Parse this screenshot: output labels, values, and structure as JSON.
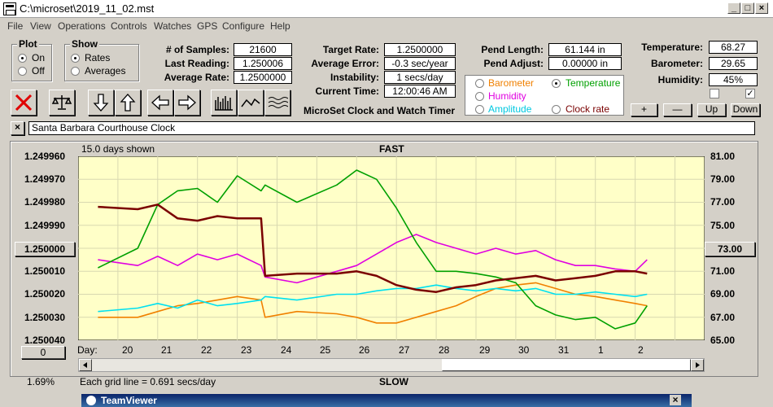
{
  "window": {
    "title": "C:\\microset\\2019_11_02.mst",
    "btn_min": "_",
    "btn_max": "□",
    "btn_close": "×"
  },
  "menu": [
    "File",
    "View",
    "Operations",
    "Controls",
    "Watches",
    "GPS",
    "Configure",
    "Help"
  ],
  "plot_group": {
    "title": "Plot",
    "on": "On",
    "off": "Off"
  },
  "show_group": {
    "title": "Show",
    "rates": "Rates",
    "averages": "Averages"
  },
  "stats": {
    "samples_label": "# of Samples:",
    "samples": "21600",
    "last_label": "Last Reading:",
    "last": "1.250006",
    "avg_label": "Average Rate:",
    "avg": "1.2500000",
    "target_label": "Target Rate:",
    "target": "1.2500000",
    "avgerr_label": "Average Error:",
    "avgerr": "-0.3 sec/year",
    "instab_label": "Instability:",
    "instab": "1 secs/day",
    "time_label": "Current Time:",
    "time": "12:00:46 AM",
    "pendlen_label": "Pend Length:",
    "pendlen": "61.144 in",
    "pendadj_label": "Pend Adjust:",
    "pendadj": "0.00000 in",
    "temp_label": "Temperature:",
    "temp": "68.27",
    "baro_label": "Barometer:",
    "baro": "29.65",
    "hum_label": "Humidity:",
    "hum": "45%"
  },
  "app_title": "MicroSet Clock and Watch Timer",
  "sensors": {
    "barometer": "Barometer",
    "temperature": "Temperature",
    "humidity": "Humidity",
    "amplitude": "Amplitude",
    "clockrate": "Clock rate"
  },
  "scale_buttons": {
    "plus": "+",
    "minus": "—",
    "up": "Up",
    "down": "Down"
  },
  "clock_name": "Santa Barbara Courthouse Clock",
  "close_x": "×",
  "colors": {
    "rate": "#7a0000",
    "temperature": "#00a000",
    "humidity": "#e000e0",
    "amplitude": "#00e0f0",
    "barometer": "#f08000",
    "plot_bg": "#ffffc8"
  },
  "chart_data": {
    "type": "line",
    "title": "FAST",
    "bottom_label": "SLOW",
    "days_shown": "15.0 days shown",
    "grid_note": "Each grid line = 0.691 secs/day",
    "xlabel": "Day:",
    "x_ticks": [
      "20",
      "21",
      "22",
      "23",
      "24",
      "25",
      "26",
      "27",
      "28",
      "29",
      "30",
      "31",
      "1",
      "2"
    ],
    "left_axis": {
      "ticks": [
        "1.249960",
        "1.249970",
        "1.249980",
        "1.249990",
        "1.250000",
        "1.250010",
        "1.250020",
        "1.250030",
        "1.250040"
      ],
      "ylim": [
        1.24996,
        1.25004
      ],
      "inverted": true
    },
    "right_axis": {
      "ticks": [
        "81.00",
        "79.00",
        "77.00",
        "75.00",
        "73.00",
        "71.00",
        "69.00",
        "67.00",
        "65.00"
      ],
      "ylim": [
        65,
        81
      ]
    },
    "left_value_button": "1.250000",
    "right_value_button": "73.00",
    "zero_button": "0",
    "percent": "1.69%",
    "x": [
      19.5,
      20.5,
      21.0,
      21.5,
      22.0,
      22.5,
      23.0,
      23.6,
      23.7,
      24.5,
      25.5,
      26.0,
      26.5,
      27.0,
      27.5,
      28.0,
      28.5,
      29.0,
      29.5,
      30.0,
      30.5,
      31.0,
      31.5,
      32.0,
      32.5,
      33.0,
      33.3
    ],
    "series": [
      {
        "name": "Clock rate",
        "values": [
          1.249982,
          1.249983,
          1.249981,
          1.249987,
          1.249988,
          1.249986,
          1.249987,
          1.249987,
          1.250012,
          1.250011,
          1.250011,
          1.25001,
          1.250012,
          1.250016,
          1.250018,
          1.250019,
          1.250017,
          1.250016,
          1.250014,
          1.250013,
          1.250012,
          1.250014,
          1.250013,
          1.250012,
          1.25001,
          1.25001,
          1.250011
        ]
      },
      {
        "name": "Temperature",
        "values": [
          71.3,
          73.0,
          76.8,
          78.0,
          78.2,
          77.0,
          79.3,
          78.0,
          78.5,
          77.0,
          78.5,
          79.8,
          79.0,
          76.5,
          73.5,
          71.0,
          71.0,
          70.8,
          70.5,
          70.0,
          68.0,
          67.2,
          66.8,
          67.0,
          66.0,
          66.5,
          68.0
        ]
      },
      {
        "name": "Humidity",
        "values": [
          72.0,
          71.5,
          72.3,
          71.5,
          72.5,
          72.0,
          72.5,
          71.5,
          70.5,
          70.0,
          71.0,
          71.5,
          72.5,
          73.5,
          74.2,
          73.5,
          73.0,
          72.5,
          73.0,
          72.5,
          72.8,
          72.0,
          71.5,
          71.5,
          71.2,
          71.0,
          72.0
        ]
      },
      {
        "name": "Amplitude",
        "values": [
          67.5,
          67.8,
          68.2,
          67.8,
          68.5,
          68.0,
          68.2,
          68.5,
          68.8,
          68.5,
          69.0,
          69.0,
          69.3,
          69.5,
          69.5,
          69.8,
          69.5,
          69.3,
          69.5,
          69.3,
          69.5,
          69.0,
          69.0,
          69.2,
          69.0,
          68.8,
          69.0
        ]
      },
      {
        "name": "Barometer",
        "values": [
          67.0,
          67.0,
          67.5,
          68.0,
          68.2,
          68.5,
          68.8,
          68.5,
          67.0,
          67.5,
          67.3,
          67.0,
          66.5,
          66.5,
          67.0,
          67.5,
          68.0,
          68.8,
          69.5,
          69.8,
          70.0,
          69.5,
          69.0,
          68.8,
          68.5,
          68.2,
          68.0
        ]
      }
    ]
  },
  "taskbar": {
    "title": "TeamViewer",
    "close": "×"
  }
}
